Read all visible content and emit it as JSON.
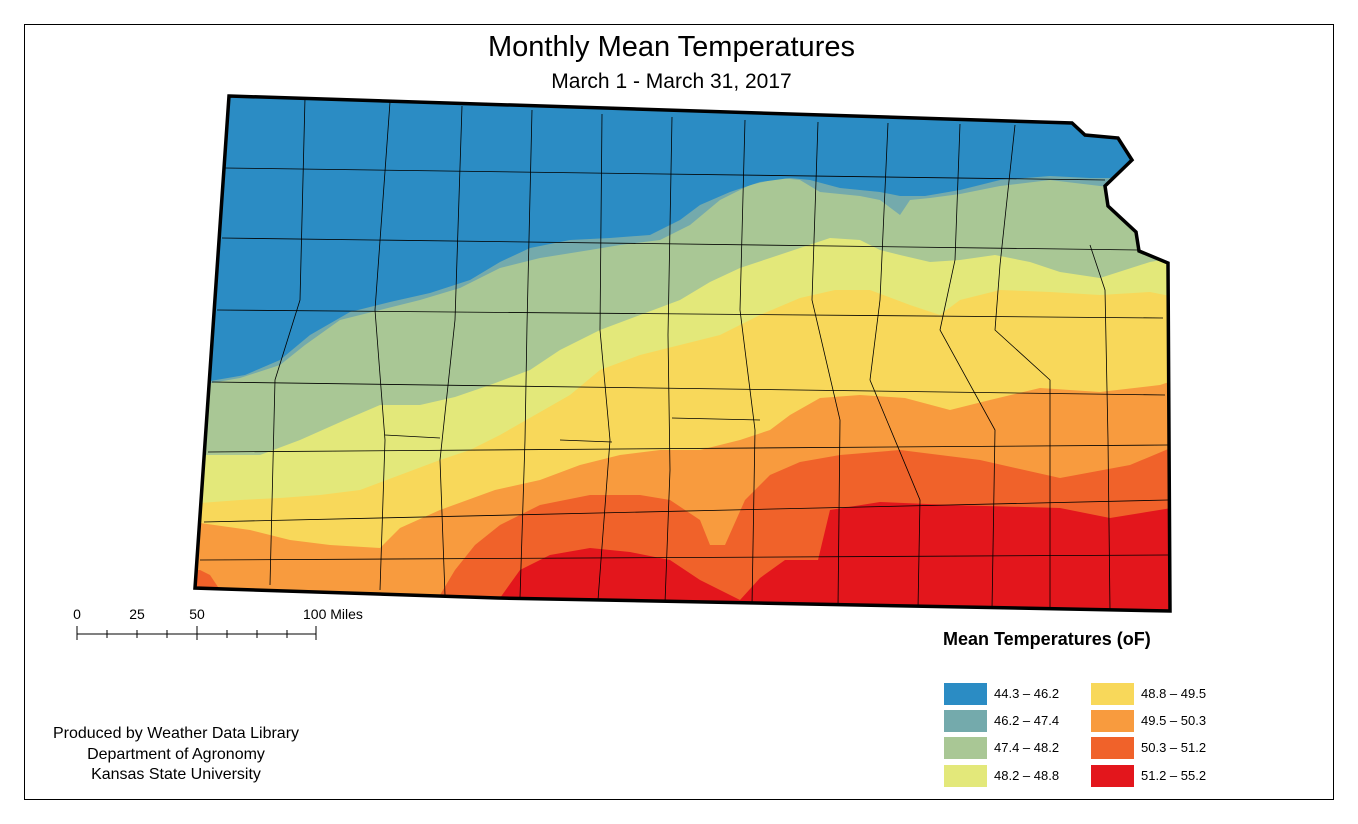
{
  "map": {
    "title": "Monthly Mean Temperatures",
    "subtitle": "March 1 - March 31, 2017",
    "scale_bar": {
      "ticks": [
        "0",
        "25",
        "50",
        "100 Miles"
      ]
    },
    "legend": {
      "title": "Mean Temperatures (oF)",
      "items": [
        {
          "label": "44.3 – 46.2",
          "color": "#2b8cc4"
        },
        {
          "label": "46.2 – 47.4",
          "color": "#74aaac"
        },
        {
          "label": "47.4 – 48.2",
          "color": "#a9c795"
        },
        {
          "label": "48.2 – 48.8",
          "color": "#e3e87a"
        },
        {
          "label": "48.8 – 49.5",
          "color": "#f8d85a"
        },
        {
          "label": "49.5 – 50.3",
          "color": "#f89b3e"
        },
        {
          "label": "50.3 – 51.2",
          "color": "#f0622a"
        },
        {
          "label": "51.2 – 55.2",
          "color": "#e3161c"
        }
      ]
    },
    "credits": [
      "Produced by Weather Data Library",
      "Department of Agronomy",
      "Kansas State University"
    ]
  }
}
